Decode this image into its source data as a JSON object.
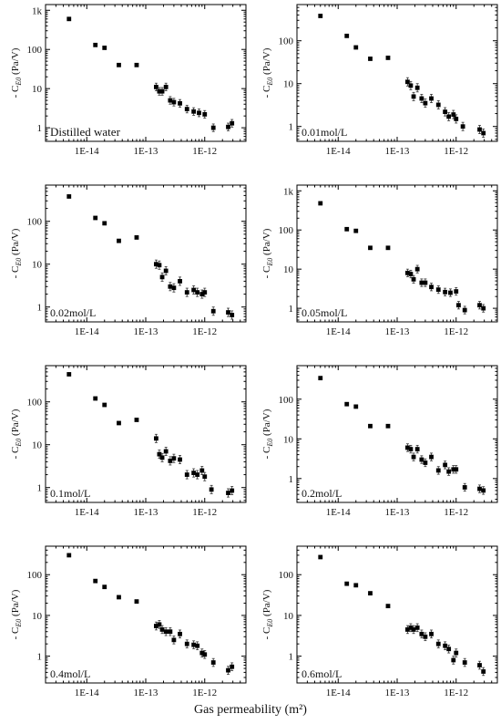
{
  "figure": {
    "xlabel": "Gas permeability (m²)",
    "ylabel_prefix": "- C",
    "ylabel_sub": "E0",
    "ylabel_unit": " (Pa/V)"
  },
  "chart_data": [
    {
      "type": "scatter",
      "log_x": true,
      "log_y": true,
      "xlim": [
        2e-15,
        5e-12
      ],
      "ylim": [
        0.45,
        1400
      ],
      "xticks": [
        "1E-14",
        "1E-13",
        "1E-12"
      ],
      "yticks": [
        "1",
        "10",
        "100",
        "1k"
      ],
      "annotation": "Distilled water",
      "points": [
        {
          "x": 5e-15,
          "y": 600
        },
        {
          "x": 1.4e-14,
          "y": 130
        },
        {
          "x": 2e-14,
          "y": 110
        },
        {
          "x": 3.5e-14,
          "y": 40
        },
        {
          "x": 7e-14,
          "y": 40
        },
        {
          "x": 1.5e-13,
          "y": 11
        },
        {
          "x": 1.7e-13,
          "y": 8.5
        },
        {
          "x": 1.9e-13,
          "y": 8.5
        },
        {
          "x": 2.2e-13,
          "y": 11
        },
        {
          "x": 2.6e-13,
          "y": 5
        },
        {
          "x": 3e-13,
          "y": 4.5
        },
        {
          "x": 3.8e-13,
          "y": 4.2
        },
        {
          "x": 5e-13,
          "y": 3
        },
        {
          "x": 6.5e-13,
          "y": 2.6
        },
        {
          "x": 8e-13,
          "y": 2.4
        },
        {
          "x": 1e-12,
          "y": 2.2
        },
        {
          "x": 1.4e-12,
          "y": 1.0
        },
        {
          "x": 2.5e-12,
          "y": 1.05
        },
        {
          "x": 2.9e-12,
          "y": 1.3
        }
      ]
    },
    {
      "type": "scatter",
      "log_x": true,
      "log_y": true,
      "xlim": [
        2e-15,
        5e-12
      ],
      "ylim": [
        0.45,
        700
      ],
      "xticks": [
        "1E-14",
        "1E-13",
        "1E-12"
      ],
      "yticks": [
        "1",
        "10",
        "100"
      ],
      "annotation": "0.01mol/L",
      "points": [
        {
          "x": 5e-15,
          "y": 380
        },
        {
          "x": 1.4e-14,
          "y": 130
        },
        {
          "x": 2e-14,
          "y": 70
        },
        {
          "x": 3.5e-14,
          "y": 38
        },
        {
          "x": 7e-14,
          "y": 40
        },
        {
          "x": 1.5e-13,
          "y": 11
        },
        {
          "x": 1.7e-13,
          "y": 9
        },
        {
          "x": 1.9e-13,
          "y": 5
        },
        {
          "x": 2.2e-13,
          "y": 8
        },
        {
          "x": 2.6e-13,
          "y": 4.5
        },
        {
          "x": 3e-13,
          "y": 3.5
        },
        {
          "x": 3.8e-13,
          "y": 4.5
        },
        {
          "x": 5e-13,
          "y": 3.2
        },
        {
          "x": 6.5e-13,
          "y": 2.2
        },
        {
          "x": 7.5e-13,
          "y": 1.7
        },
        {
          "x": 9e-13,
          "y": 1.9
        },
        {
          "x": 1e-12,
          "y": 1.5
        },
        {
          "x": 1.3e-12,
          "y": 1.0
        },
        {
          "x": 2.5e-12,
          "y": 0.85
        },
        {
          "x": 2.9e-12,
          "y": 0.7
        }
      ]
    },
    {
      "type": "scatter",
      "log_x": true,
      "log_y": true,
      "xlim": [
        2e-15,
        5e-12
      ],
      "ylim": [
        0.45,
        700
      ],
      "xticks": [
        "1E-14",
        "1E-13",
        "1E-12"
      ],
      "yticks": [
        "1",
        "10",
        "100"
      ],
      "annotation": "0.02mol/L",
      "points": [
        {
          "x": 5e-15,
          "y": 380
        },
        {
          "x": 1.4e-14,
          "y": 120
        },
        {
          "x": 2e-14,
          "y": 90
        },
        {
          "x": 3.5e-14,
          "y": 35
        },
        {
          "x": 7e-14,
          "y": 42
        },
        {
          "x": 1.5e-13,
          "y": 10
        },
        {
          "x": 1.7e-13,
          "y": 9.5
        },
        {
          "x": 1.9e-13,
          "y": 5
        },
        {
          "x": 2.2e-13,
          "y": 7
        },
        {
          "x": 2.6e-13,
          "y": 3
        },
        {
          "x": 3e-13,
          "y": 2.8
        },
        {
          "x": 3.8e-13,
          "y": 4
        },
        {
          "x": 5e-13,
          "y": 2.2
        },
        {
          "x": 6.5e-13,
          "y": 2.5
        },
        {
          "x": 7.5e-13,
          "y": 2.2
        },
        {
          "x": 9e-13,
          "y": 2
        },
        {
          "x": 1e-12,
          "y": 2.2
        },
        {
          "x": 1.4e-12,
          "y": 0.8
        },
        {
          "x": 2.5e-12,
          "y": 0.75
        },
        {
          "x": 2.9e-12,
          "y": 0.65
        }
      ]
    },
    {
      "type": "scatter",
      "log_x": true,
      "log_y": true,
      "xlim": [
        2e-15,
        5e-12
      ],
      "ylim": [
        0.45,
        1400
      ],
      "xticks": [
        "1E-14",
        "1E-13",
        "1E-12"
      ],
      "yticks": [
        "1",
        "10",
        "100",
        "1k"
      ],
      "annotation": "0.05mol/L",
      "points": [
        {
          "x": 5e-15,
          "y": 480
        },
        {
          "x": 1.4e-14,
          "y": 105
        },
        {
          "x": 2e-14,
          "y": 95
        },
        {
          "x": 3.5e-14,
          "y": 35
        },
        {
          "x": 7e-14,
          "y": 35
        },
        {
          "x": 1.5e-13,
          "y": 8
        },
        {
          "x": 1.7e-13,
          "y": 7.5
        },
        {
          "x": 1.9e-13,
          "y": 5.5
        },
        {
          "x": 2.2e-13,
          "y": 10
        },
        {
          "x": 2.6e-13,
          "y": 4.5
        },
        {
          "x": 3e-13,
          "y": 4.5
        },
        {
          "x": 3.8e-13,
          "y": 3.5
        },
        {
          "x": 5e-13,
          "y": 3
        },
        {
          "x": 6.5e-13,
          "y": 2.6
        },
        {
          "x": 8e-13,
          "y": 2.5
        },
        {
          "x": 1e-12,
          "y": 2.7
        },
        {
          "x": 1.1e-12,
          "y": 1.2
        },
        {
          "x": 1.4e-12,
          "y": 0.9
        },
        {
          "x": 2.5e-12,
          "y": 1.2
        },
        {
          "x": 2.9e-12,
          "y": 1.0
        }
      ]
    },
    {
      "type": "scatter",
      "log_x": true,
      "log_y": true,
      "xlim": [
        2e-15,
        5e-12
      ],
      "ylim": [
        0.45,
        700
      ],
      "xticks": [
        "1E-14",
        "1E-13",
        "1E-12"
      ],
      "yticks": [
        "1",
        "10",
        "100"
      ],
      "annotation": "0.1mol/L",
      "points": [
        {
          "x": 5e-15,
          "y": 440
        },
        {
          "x": 1.4e-14,
          "y": 120
        },
        {
          "x": 2e-14,
          "y": 85
        },
        {
          "x": 3.5e-14,
          "y": 32
        },
        {
          "x": 7e-14,
          "y": 38
        },
        {
          "x": 1.5e-13,
          "y": 14
        },
        {
          "x": 1.7e-13,
          "y": 6
        },
        {
          "x": 1.9e-13,
          "y": 5
        },
        {
          "x": 2.2e-13,
          "y": 7
        },
        {
          "x": 2.6e-13,
          "y": 4.2
        },
        {
          "x": 3e-13,
          "y": 4.8
        },
        {
          "x": 3.8e-13,
          "y": 4.5
        },
        {
          "x": 5e-13,
          "y": 2
        },
        {
          "x": 6.5e-13,
          "y": 2.2
        },
        {
          "x": 7.5e-13,
          "y": 2.0
        },
        {
          "x": 9e-13,
          "y": 2.5
        },
        {
          "x": 1e-12,
          "y": 1.8
        },
        {
          "x": 1.3e-12,
          "y": 0.9
        },
        {
          "x": 2.5e-12,
          "y": 0.75
        },
        {
          "x": 2.9e-12,
          "y": 0.85
        }
      ]
    },
    {
      "type": "scatter",
      "log_x": true,
      "log_y": true,
      "xlim": [
        2e-15,
        5e-12
      ],
      "ylim": [
        0.25,
        700
      ],
      "xticks": [
        "1E-14",
        "1E-13",
        "1E-12"
      ],
      "yticks": [
        "1",
        "10",
        "100"
      ],
      "annotation": "0.2mol/L",
      "points": [
        {
          "x": 5e-15,
          "y": 340
        },
        {
          "x": 1.4e-14,
          "y": 75
        },
        {
          "x": 2e-14,
          "y": 65
        },
        {
          "x": 3.5e-14,
          "y": 21
        },
        {
          "x": 7e-14,
          "y": 21
        },
        {
          "x": 1.5e-13,
          "y": 6
        },
        {
          "x": 1.7e-13,
          "y": 5.5
        },
        {
          "x": 1.9e-13,
          "y": 3.5
        },
        {
          "x": 2.2e-13,
          "y": 5.5
        },
        {
          "x": 2.6e-13,
          "y": 3
        },
        {
          "x": 3e-13,
          "y": 2.5
        },
        {
          "x": 3.8e-13,
          "y": 3.5
        },
        {
          "x": 5e-13,
          "y": 1.6
        },
        {
          "x": 6.5e-13,
          "y": 2.2
        },
        {
          "x": 7.5e-13,
          "y": 1.5
        },
        {
          "x": 9e-13,
          "y": 1.7
        },
        {
          "x": 1e-12,
          "y": 1.7
        },
        {
          "x": 1.4e-12,
          "y": 0.6
        },
        {
          "x": 2.5e-12,
          "y": 0.55
        },
        {
          "x": 2.9e-12,
          "y": 0.5
        }
      ]
    },
    {
      "type": "scatter",
      "log_x": true,
      "log_y": true,
      "xlim": [
        2e-15,
        5e-12
      ],
      "ylim": [
        0.22,
        500
      ],
      "xticks": [
        "1E-14",
        "1E-13",
        "1E-12"
      ],
      "yticks": [
        "1",
        "10",
        "100"
      ],
      "annotation": "0.4mol/L",
      "points": [
        {
          "x": 5e-15,
          "y": 300
        },
        {
          "x": 1.4e-14,
          "y": 70
        },
        {
          "x": 2e-14,
          "y": 50
        },
        {
          "x": 3.5e-14,
          "y": 28
        },
        {
          "x": 7e-14,
          "y": 22
        },
        {
          "x": 1.5e-13,
          "y": 5.5
        },
        {
          "x": 1.7e-13,
          "y": 6
        },
        {
          "x": 1.9e-13,
          "y": 4.5
        },
        {
          "x": 2.2e-13,
          "y": 4
        },
        {
          "x": 2.6e-13,
          "y": 4
        },
        {
          "x": 3e-13,
          "y": 2.5
        },
        {
          "x": 3.8e-13,
          "y": 3.5
        },
        {
          "x": 5e-13,
          "y": 2
        },
        {
          "x": 6.5e-13,
          "y": 1.9
        },
        {
          "x": 7.5e-13,
          "y": 1.8
        },
        {
          "x": 9e-13,
          "y": 1.2
        },
        {
          "x": 1e-12,
          "y": 1.1
        },
        {
          "x": 1.4e-12,
          "y": 0.7
        },
        {
          "x": 2.5e-12,
          "y": 0.45
        },
        {
          "x": 2.9e-12,
          "y": 0.55
        }
      ]
    },
    {
      "type": "scatter",
      "log_x": true,
      "log_y": true,
      "xlim": [
        2e-15,
        5e-12
      ],
      "ylim": [
        0.22,
        500
      ],
      "xticks": [
        "1E-14",
        "1E-13",
        "1E-12"
      ],
      "yticks": [
        "1",
        "10",
        "100"
      ],
      "annotation": "0.6mol/L",
      "points": [
        {
          "x": 5e-15,
          "y": 270
        },
        {
          "x": 1.4e-14,
          "y": 60
        },
        {
          "x": 2e-14,
          "y": 55
        },
        {
          "x": 3.5e-14,
          "y": 35
        },
        {
          "x": 7e-14,
          "y": 17
        },
        {
          "x": 1.5e-13,
          "y": 4.5
        },
        {
          "x": 1.7e-13,
          "y": 5
        },
        {
          "x": 1.9e-13,
          "y": 4.5
        },
        {
          "x": 2.2e-13,
          "y": 5
        },
        {
          "x": 2.6e-13,
          "y": 3.5
        },
        {
          "x": 3e-13,
          "y": 3
        },
        {
          "x": 3.8e-13,
          "y": 3.5
        },
        {
          "x": 5e-13,
          "y": 2
        },
        {
          "x": 6.5e-13,
          "y": 1.8
        },
        {
          "x": 7.5e-13,
          "y": 1.5
        },
        {
          "x": 9e-13,
          "y": 0.8
        },
        {
          "x": 1e-12,
          "y": 1.2
        },
        {
          "x": 1.4e-12,
          "y": 0.7
        },
        {
          "x": 2.5e-12,
          "y": 0.6
        },
        {
          "x": 2.9e-12,
          "y": 0.42
        }
      ]
    }
  ]
}
